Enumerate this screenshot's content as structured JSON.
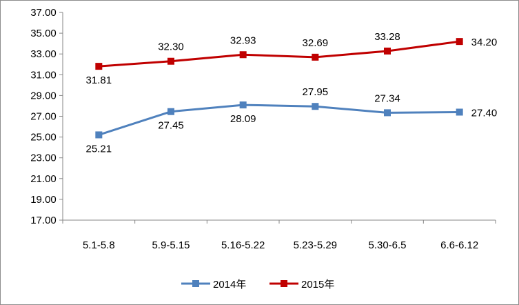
{
  "chart_data": {
    "type": "line",
    "title": "",
    "xlabel": "",
    "ylabel": "",
    "categories": [
      "5.1-5.8",
      "5.9-5.15",
      "5.16-5.22",
      "5.23-5.29",
      "5.30-6.5",
      "6.6-6.12"
    ],
    "ylim": [
      17.0,
      37.0
    ],
    "yticks": [
      "17.00",
      "19.00",
      "21.00",
      "23.00",
      "25.00",
      "27.00",
      "29.00",
      "31.00",
      "33.00",
      "35.00",
      "37.00"
    ],
    "grid": false,
    "legend_position": "bottom",
    "series": [
      {
        "name": "2014年",
        "color": "#4f81bd",
        "marker": "square",
        "values": [
          25.21,
          27.45,
          28.09,
          27.95,
          27.34,
          27.4
        ],
        "labels": [
          "25.21",
          "27.45",
          "28.09",
          "27.95",
          "27.34",
          "27.40"
        ]
      },
      {
        "name": "2015年",
        "color": "#c00000",
        "marker": "square",
        "values": [
          31.81,
          32.3,
          32.93,
          32.69,
          33.28,
          34.2
        ],
        "labels": [
          "31.81",
          "32.30",
          "32.93",
          "32.69",
          "33.28",
          "34.20"
        ]
      }
    ]
  }
}
